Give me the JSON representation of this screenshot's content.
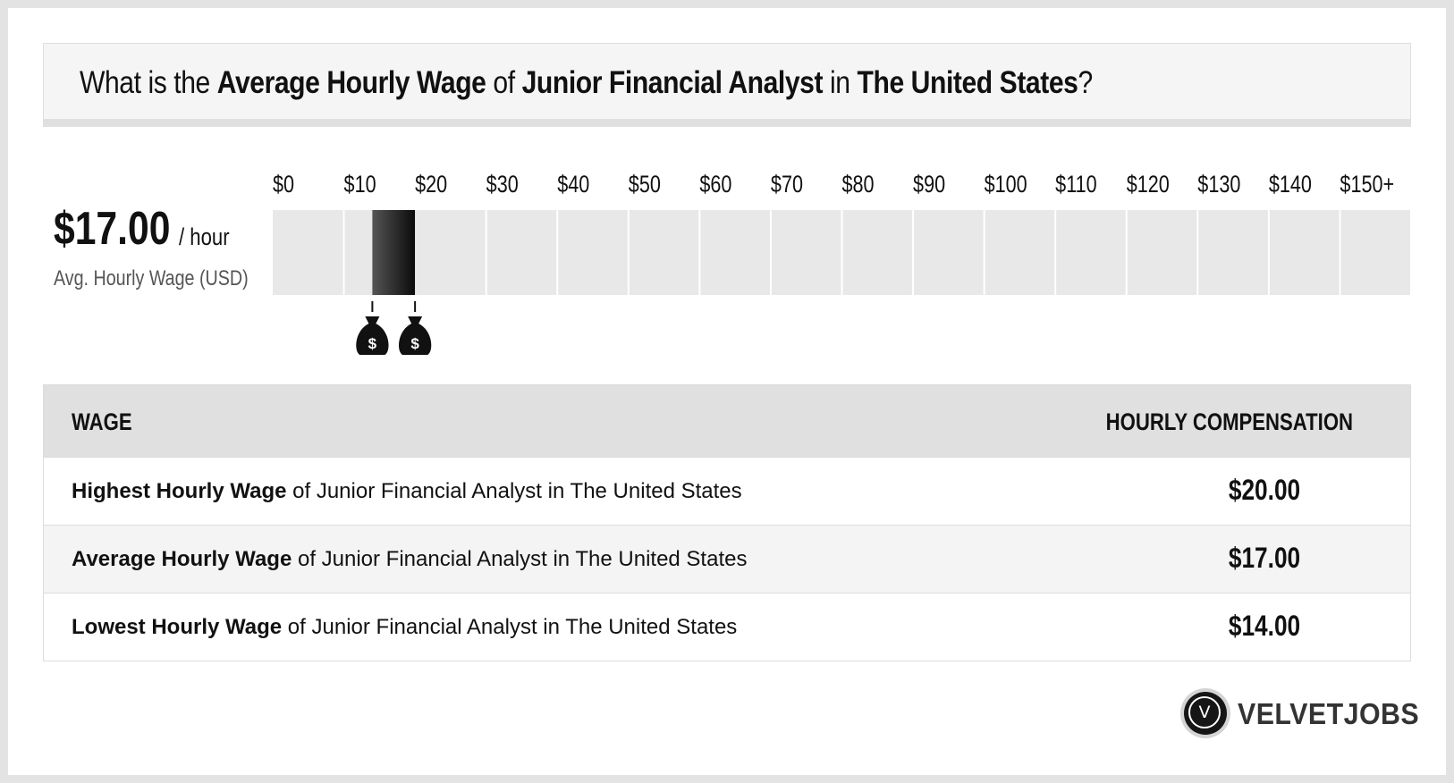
{
  "title": {
    "p1": "What is the ",
    "b1": "Average Hourly Wage",
    "p2": " of ",
    "b2": "Junior Financial Analyst",
    "p3": " in ",
    "b3": "The United States",
    "p4": "?"
  },
  "average": {
    "value": "$17.00",
    "unit": "/ hour",
    "caption": "Avg. Hourly Wage (USD)"
  },
  "chart_data": {
    "type": "bar",
    "orientation": "horizontal-range",
    "tick_labels": [
      "$0",
      "$10",
      "$20",
      "$30",
      "$40",
      "$50",
      "$60",
      "$70",
      "$80",
      "$90",
      "$100",
      "$110",
      "$120",
      "$130",
      "$140",
      "$150+"
    ],
    "xlim": [
      0,
      150
    ],
    "range": {
      "low": 14,
      "high": 20
    },
    "markers": [
      14,
      20
    ],
    "marker_icon": "money-bag-icon",
    "colors": {
      "track": "#e8e8e8",
      "bar_start": "#555555",
      "bar_end": "#0b0b0b"
    }
  },
  "table": {
    "headers": {
      "wage": "WAGE",
      "comp": "HOURLY COMPENSATION"
    },
    "rows": [
      {
        "bold": "Highest Hourly Wage",
        "rest": " of Junior Financial Analyst in The United States",
        "value": "$20.00"
      },
      {
        "bold": "Average Hourly Wage",
        "rest": " of Junior Financial Analyst in The United States",
        "value": "$17.00"
      },
      {
        "bold": "Lowest Hourly Wage",
        "rest": " of Junior Financial Analyst in The United States",
        "value": "$14.00"
      }
    ]
  },
  "logo": {
    "mark": "V",
    "text": "VELVETJOBS"
  }
}
